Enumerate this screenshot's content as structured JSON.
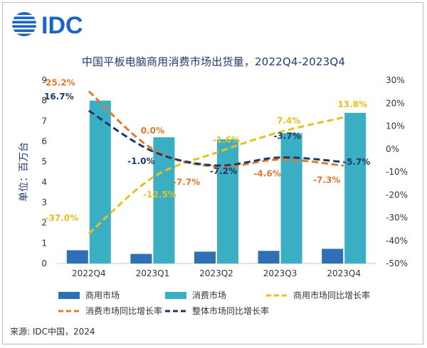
{
  "logo": {
    "text": "IDC",
    "color": "#1a63c7"
  },
  "source": "来源: IDC中国，2024",
  "chart_data": {
    "type": "bar",
    "title": "中国平板电脑商用消费市场出货量，2022Q4-2023Q4",
    "ylabel": "单位：百万台",
    "categories": [
      "2022Q4",
      "2023Q1",
      "2023Q2",
      "2023Q3",
      "2023Q4"
    ],
    "ylim": [
      0,
      9
    ],
    "yticks": [
      "0",
      "1",
      "2",
      "3",
      "4",
      "5",
      "6",
      "7",
      "8",
      "9"
    ],
    "y2lim": [
      -50,
      30
    ],
    "y2ticks": [
      "-50%",
      "-40%",
      "-30%",
      "-20%",
      "-10%",
      "0%",
      "10%",
      "20%",
      "30%"
    ],
    "grid": false,
    "legend_position": "bottom",
    "series": [
      {
        "name": "商用市场",
        "kind": "bar",
        "color": "#2e6fb5",
        "values": [
          0.65,
          0.47,
          0.58,
          0.62,
          0.72
        ]
      },
      {
        "name": "消费市场",
        "kind": "bar",
        "color": "#3aafc4",
        "values": [
          8.0,
          6.2,
          6.1,
          6.4,
          7.4
        ]
      },
      {
        "name": "商用市场同比增长率",
        "kind": "line",
        "axis": "right",
        "color": "#e8c01e",
        "style": "dashed",
        "values": [
          -37.0,
          -12.5,
          -1.6,
          7.4,
          13.8
        ],
        "labels": [
          "-37.0%",
          "-12.5%",
          "-1.6%",
          "7.4%",
          "13.8%"
        ]
      },
      {
        "name": "消费市场同比增长率",
        "kind": "line",
        "axis": "right",
        "color": "#e07b2b",
        "style": "dashed",
        "values": [
          25.2,
          0.0,
          -7.7,
          -4.6,
          -7.3
        ],
        "labels": [
          "25.2%",
          "0.0%",
          "-7.7%",
          "-4.6%",
          "-7.3%"
        ]
      },
      {
        "name": "整体市场同比增长率",
        "kind": "line",
        "axis": "right",
        "color": "#1c3a63",
        "style": "dashed",
        "values": [
          16.7,
          -1.0,
          -7.2,
          -3.7,
          -5.7
        ],
        "labels": [
          "16.7%",
          "-1.0%",
          "-7.2%",
          "-3.7%",
          "-5.7%"
        ]
      }
    ]
  }
}
